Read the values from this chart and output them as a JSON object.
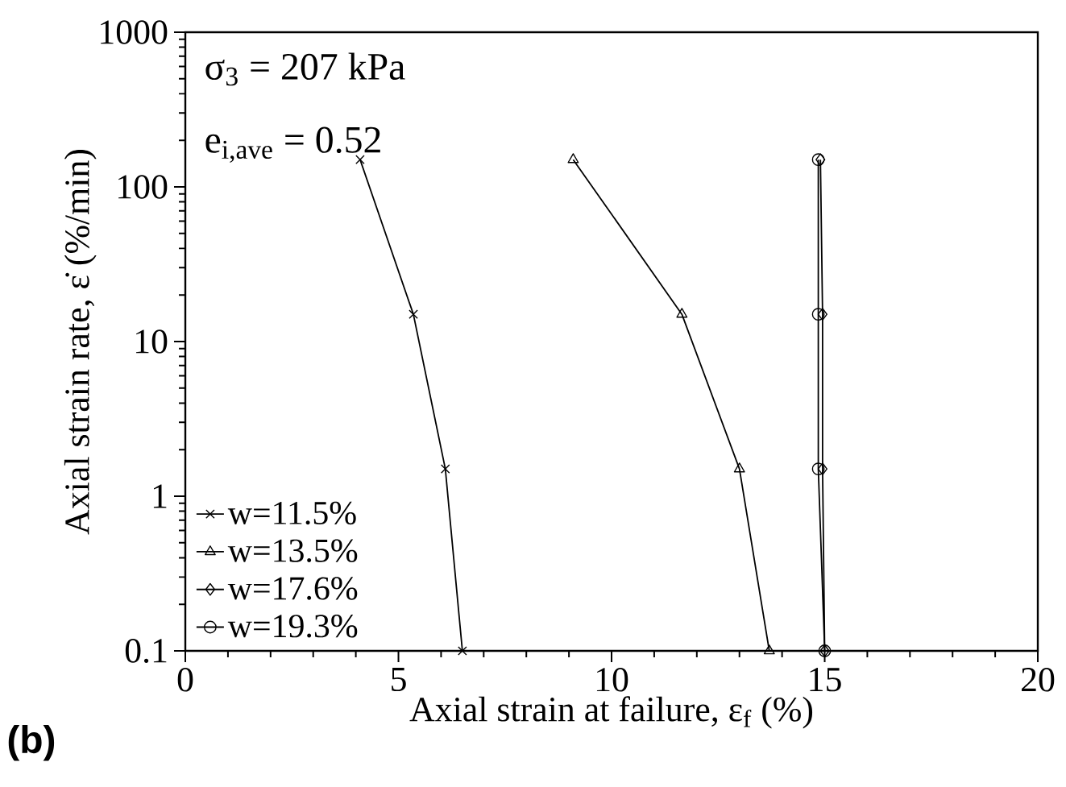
{
  "chart_data": {
    "type": "line",
    "xlabel": "Axial strain at failure, ε$_{f}$ (%)",
    "ylabel": "Axial strain rate, ε̇ (%/min)",
    "annotations": [
      "σ$_{3}$ = 207 kPa",
      "e$_{i,ave}$ = 0.52",
      "**(b)**"
    ],
    "log": "y",
    "xlim": [
      0,
      20
    ],
    "ylim": [
      0.1,
      1000
    ],
    "xticks": [
      0,
      5,
      10,
      15,
      20
    ],
    "yticks": [
      0.1,
      1,
      10,
      100,
      1000
    ],
    "legend": "bottom left",
    "grid": false,
    "line_style": "solid",
    "series": [
      {
        "name": "w=11.5%",
        "color": "#000000",
        "marker": "cross",
        "x": [
          4.1,
          5.35,
          6.1,
          6.5
        ],
        "values": [
          150,
          15,
          1.5,
          0.1
        ]
      },
      {
        "name": "w=13.5%",
        "color": "#000000",
        "marker": "triangle",
        "x": [
          9.1,
          11.65,
          13.0,
          13.7
        ],
        "values": [
          150,
          15,
          1.5,
          0.1
        ]
      },
      {
        "name": "w=17.6%",
        "color": "#000000",
        "marker": "diamond",
        "x": [
          14.9,
          14.95,
          14.95,
          15.0
        ],
        "values": [
          150,
          15,
          1.5,
          0.1
        ]
      },
      {
        "name": "w=19.3%",
        "color": "#000000",
        "marker": "circle",
        "x": [
          14.85,
          14.85,
          14.85,
          15.0
        ],
        "values": [
          150,
          15,
          1.5,
          0.1
        ]
      }
    ]
  }
}
